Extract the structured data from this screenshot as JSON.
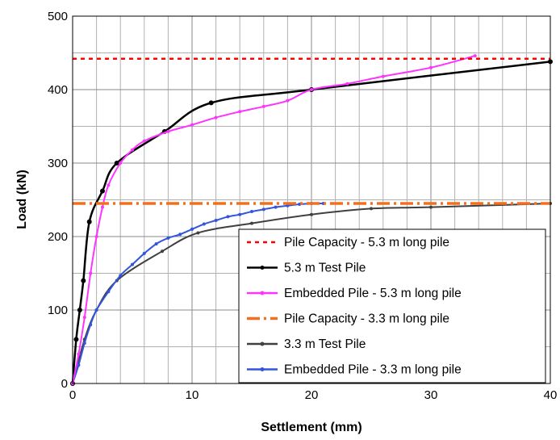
{
  "chart_data": {
    "type": "line",
    "xlabel": "Settlement (mm)",
    "ylabel": "Load (kN)",
    "xlim": [
      0,
      40
    ],
    "ylim": [
      0,
      500
    ],
    "xticks": [
      0,
      10,
      20,
      30,
      40
    ],
    "yticks": [
      0,
      100,
      200,
      300,
      400,
      500
    ],
    "x_minor_step": 2,
    "y_minor_step": 50,
    "grid": true,
    "legend_position": "bottom-right",
    "series": [
      {
        "name": "Pile Capacity - 5.3 m long pile",
        "style": "dotted",
        "color": "#ff0000",
        "points": [
          [
            0,
            442
          ],
          [
            40,
            442
          ]
        ]
      },
      {
        "name": "5.3 m Test Pile",
        "style": "solid-markers",
        "color": "#000000",
        "points": [
          [
            0,
            0
          ],
          [
            0.3,
            60
          ],
          [
            0.6,
            100
          ],
          [
            0.9,
            140
          ],
          [
            1.4,
            220
          ],
          [
            2.5,
            262
          ],
          [
            3.7,
            300
          ],
          [
            7.7,
            343
          ],
          [
            11.6,
            382
          ],
          [
            20,
            400
          ],
          [
            40,
            438
          ]
        ]
      },
      {
        "name": "Embedded Pile - 5.3 m long pile",
        "style": "solid-markers",
        "color": "#ff33ff",
        "points": [
          [
            0,
            0
          ],
          [
            0.5,
            40
          ],
          [
            1,
            90
          ],
          [
            1.5,
            150
          ],
          [
            2,
            200
          ],
          [
            2.5,
            240
          ],
          [
            3,
            270
          ],
          [
            4,
            300
          ],
          [
            5,
            318
          ],
          [
            6,
            330
          ],
          [
            8,
            343
          ],
          [
            10,
            352
          ],
          [
            12,
            362
          ],
          [
            14,
            370
          ],
          [
            16,
            377
          ],
          [
            18,
            385
          ],
          [
            20,
            400
          ],
          [
            23,
            408
          ],
          [
            26,
            418
          ],
          [
            30,
            430
          ],
          [
            33.7,
            446
          ]
        ]
      },
      {
        "name": "Pile Capacity - 3.3 m long pile",
        "style": "dash-dot",
        "color": "#f07020",
        "points": [
          [
            0,
            245
          ],
          [
            40,
            245
          ]
        ]
      },
      {
        "name": "3.3 m Test Pile",
        "style": "solid-markers",
        "color": "#404040",
        "points": [
          [
            0,
            0
          ],
          [
            1,
            60
          ],
          [
            2,
            100
          ],
          [
            3.7,
            140
          ],
          [
            7.5,
            180
          ],
          [
            10.5,
            205
          ],
          [
            15,
            218
          ],
          [
            20,
            230
          ],
          [
            25,
            238
          ],
          [
            30,
            240
          ],
          [
            40,
            245
          ]
        ]
      },
      {
        "name": "Embedded Pile - 3.3 m long pile",
        "style": "solid-markers",
        "color": "#3355dd",
        "points": [
          [
            0,
            0
          ],
          [
            0.5,
            25
          ],
          [
            1,
            55
          ],
          [
            1.5,
            80
          ],
          [
            2,
            100
          ],
          [
            3,
            125
          ],
          [
            4,
            147
          ],
          [
            5,
            162
          ],
          [
            6,
            177
          ],
          [
            7,
            190
          ],
          [
            8,
            198
          ],
          [
            9,
            203
          ],
          [
            10,
            210
          ],
          [
            11,
            217
          ],
          [
            12,
            222
          ],
          [
            13,
            227
          ],
          [
            14,
            230
          ],
          [
            15,
            234
          ],
          [
            16,
            237
          ],
          [
            17,
            240
          ],
          [
            18,
            242
          ],
          [
            19,
            244
          ],
          [
            20,
            245
          ],
          [
            21,
            245
          ]
        ]
      }
    ]
  }
}
